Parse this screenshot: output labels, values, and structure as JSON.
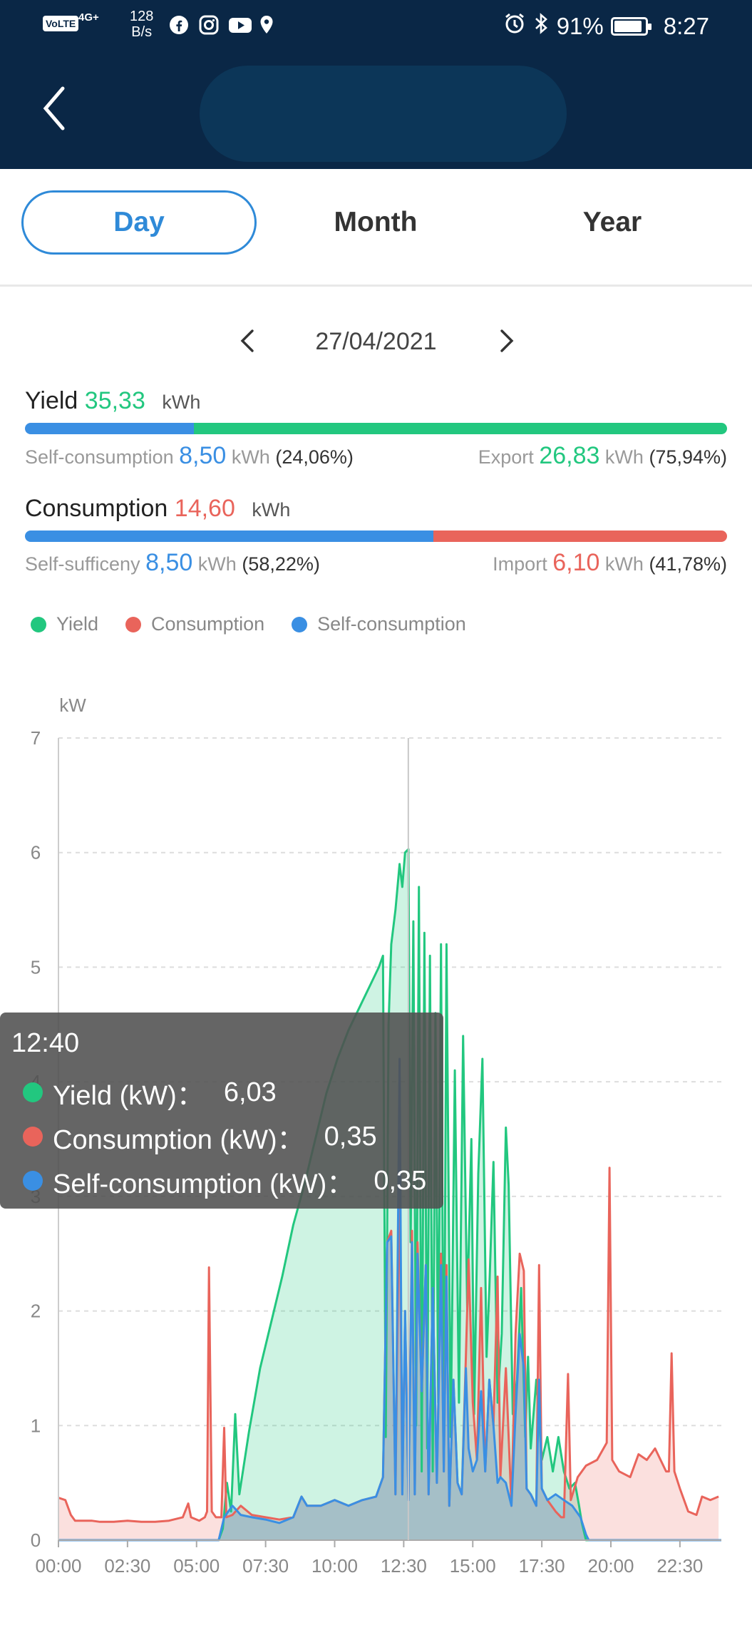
{
  "status_bar": {
    "volte": "VoLTE",
    "network": "4G+",
    "speed_value": "128",
    "speed_unit": "B/s",
    "battery": "91%",
    "time": "8:27"
  },
  "tabs": [
    {
      "label": "Day",
      "active": true
    },
    {
      "label": "Month",
      "active": false
    },
    {
      "label": "Year",
      "active": false
    }
  ],
  "date": "27/04/2021",
  "yield_summary": {
    "label": "Yield",
    "value": "35,33",
    "unit": "kWh",
    "self_consumption_label": "Self-consumption",
    "self_consumption_value": "8,50",
    "self_consumption_unit": "kWh",
    "self_consumption_pct": "(24,06%)",
    "export_label": "Export",
    "export_value": "26,83",
    "export_unit": "kWh",
    "export_pct": "(75,94%)",
    "self_fraction": 0.2406
  },
  "consumption_summary": {
    "label": "Consumption",
    "value": "14,60",
    "unit": "kWh",
    "self_sufficiency_label": "Self-sufficeny",
    "self_sufficiency_value": "8,50",
    "self_sufficiency_unit": "kWh",
    "self_sufficiency_pct": "(58,22%)",
    "import_label": "Import",
    "import_value": "6,10",
    "import_unit": "kWh",
    "import_pct": "(41,78%)",
    "self_fraction": 0.5822
  },
  "legend": [
    {
      "label": "Yield",
      "color": "#22c77f"
    },
    {
      "label": "Consumption",
      "color": "#e9645b"
    },
    {
      "label": "Self-consumption",
      "color": "#3a8fe3"
    }
  ],
  "tooltip": {
    "time": "12:40",
    "rows": [
      {
        "label": "Yield (kW)：",
        "value": "6,03",
        "color": "#22c77f"
      },
      {
        "label": "Consumption (kW)：",
        "value": "0,35",
        "color": "#e9645b"
      },
      {
        "label": "Self-consumption (kW)：",
        "value": "0,35",
        "color": "#3a8fe3"
      }
    ]
  },
  "chart_data": {
    "type": "area",
    "ylabel": "kW",
    "ylim": [
      0,
      7
    ],
    "yticks": [
      "0",
      "1",
      "2",
      "3",
      "4",
      "5",
      "6",
      "7"
    ],
    "xlim_hours": [
      0,
      24
    ],
    "xticks": [
      "00:00",
      "02:30",
      "05:00",
      "07:30",
      "10:00",
      "12:30",
      "15:00",
      "17:30",
      "20:00",
      "22:30"
    ],
    "grid": true,
    "cursor_time": "12:40",
    "series": [
      {
        "name": "Yield",
        "color": "#22c77f",
        "points": [
          [
            0.0,
            0.0
          ],
          [
            5.8,
            0.0
          ],
          [
            5.95,
            0.1
          ],
          [
            6.1,
            0.5
          ],
          [
            6.25,
            0.25
          ],
          [
            6.4,
            1.1
          ],
          [
            6.55,
            0.4
          ],
          [
            6.9,
            0.95
          ],
          [
            7.3,
            1.5
          ],
          [
            7.7,
            1.9
          ],
          [
            8.1,
            2.3
          ],
          [
            8.5,
            2.75
          ],
          [
            8.9,
            3.1
          ],
          [
            9.3,
            3.5
          ],
          [
            9.7,
            3.9
          ],
          [
            10.1,
            4.2
          ],
          [
            10.5,
            4.45
          ],
          [
            10.9,
            4.65
          ],
          [
            11.3,
            4.85
          ],
          [
            11.6,
            5.0
          ],
          [
            11.75,
            5.1
          ],
          [
            11.85,
            0.9
          ],
          [
            11.95,
            4.5
          ],
          [
            12.05,
            5.2
          ],
          [
            12.2,
            5.5
          ],
          [
            12.35,
            5.9
          ],
          [
            12.45,
            5.7
          ],
          [
            12.55,
            6.0
          ],
          [
            12.67,
            6.03
          ],
          [
            12.75,
            2.6
          ],
          [
            12.85,
            5.4
          ],
          [
            12.95,
            1.0
          ],
          [
            13.05,
            5.7
          ],
          [
            13.15,
            0.6
          ],
          [
            13.25,
            5.3
          ],
          [
            13.35,
            0.8
          ],
          [
            13.45,
            5.1
          ],
          [
            13.55,
            0.6
          ],
          [
            13.65,
            4.6
          ],
          [
            13.75,
            1.2
          ],
          [
            13.85,
            5.2
          ],
          [
            13.95,
            0.7
          ],
          [
            14.05,
            5.2
          ],
          [
            14.2,
            0.9
          ],
          [
            14.35,
            4.1
          ],
          [
            14.5,
            1.2
          ],
          [
            14.65,
            4.4
          ],
          [
            14.8,
            2.0
          ],
          [
            14.95,
            3.5
          ],
          [
            15.05,
            1.1
          ],
          [
            15.2,
            3.2
          ],
          [
            15.35,
            4.2
          ],
          [
            15.5,
            1.6
          ],
          [
            15.6,
            2.2
          ],
          [
            15.75,
            3.3
          ],
          [
            15.9,
            1.2
          ],
          [
            16.05,
            1.8
          ],
          [
            16.2,
            3.6
          ],
          [
            16.3,
            3.1
          ],
          [
            16.45,
            1.1
          ],
          [
            16.6,
            1.4
          ],
          [
            16.75,
            2.2
          ],
          [
            16.9,
            0.9
          ],
          [
            17.0,
            1.6
          ],
          [
            17.1,
            0.8
          ],
          [
            17.3,
            1.4
          ],
          [
            17.5,
            0.7
          ],
          [
            17.7,
            0.9
          ],
          [
            17.9,
            0.6
          ],
          [
            18.1,
            0.9
          ],
          [
            18.3,
            0.6
          ],
          [
            18.5,
            0.45
          ],
          [
            18.7,
            0.5
          ],
          [
            18.85,
            0.3
          ],
          [
            18.95,
            0.15
          ],
          [
            19.1,
            0.0
          ],
          [
            24.0,
            0.0
          ]
        ]
      },
      {
        "name": "Consumption",
        "color": "#e9645b",
        "points": [
          [
            0.0,
            0.37
          ],
          [
            0.25,
            0.35
          ],
          [
            0.45,
            0.22
          ],
          [
            0.6,
            0.17
          ],
          [
            1.2,
            0.17
          ],
          [
            1.5,
            0.16
          ],
          [
            2.0,
            0.16
          ],
          [
            2.5,
            0.17
          ],
          [
            3.0,
            0.16
          ],
          [
            3.5,
            0.16
          ],
          [
            4.0,
            0.17
          ],
          [
            4.5,
            0.2
          ],
          [
            4.7,
            0.32
          ],
          [
            4.8,
            0.2
          ],
          [
            5.1,
            0.17
          ],
          [
            5.3,
            0.2
          ],
          [
            5.38,
            0.25
          ],
          [
            5.45,
            2.38
          ],
          [
            5.55,
            0.25
          ],
          [
            5.7,
            0.2
          ],
          [
            5.9,
            0.2
          ],
          [
            6.0,
            0.98
          ],
          [
            6.08,
            0.2
          ],
          [
            6.3,
            0.22
          ],
          [
            6.6,
            0.3
          ],
          [
            7.0,
            0.22
          ],
          [
            7.5,
            0.2
          ],
          [
            8.0,
            0.18
          ],
          [
            8.5,
            0.2
          ],
          [
            8.8,
            0.38
          ],
          [
            9.0,
            0.3
          ],
          [
            9.5,
            0.3
          ],
          [
            10.0,
            0.35
          ],
          [
            10.5,
            0.3
          ],
          [
            11.0,
            0.35
          ],
          [
            11.5,
            0.38
          ],
          [
            11.75,
            0.55
          ],
          [
            11.9,
            2.6
          ],
          [
            12.05,
            2.7
          ],
          [
            12.2,
            0.4
          ],
          [
            12.35,
            3.3
          ],
          [
            12.45,
            0.4
          ],
          [
            12.55,
            2.0
          ],
          [
            12.67,
            0.35
          ],
          [
            12.8,
            2.7
          ],
          [
            12.9,
            0.4
          ],
          [
            13.0,
            2.6
          ],
          [
            13.15,
            1.3
          ],
          [
            13.3,
            2.4
          ],
          [
            13.4,
            0.4
          ],
          [
            13.55,
            2.2
          ],
          [
            13.7,
            0.5
          ],
          [
            13.85,
            2.5
          ],
          [
            13.95,
            0.6
          ],
          [
            14.05,
            2.4
          ],
          [
            14.15,
            0.3
          ],
          [
            14.3,
            1.4
          ],
          [
            14.45,
            0.5
          ],
          [
            14.6,
            0.4
          ],
          [
            14.75,
            1.6
          ],
          [
            14.85,
            2.45
          ],
          [
            15.0,
            1.2
          ],
          [
            15.15,
            0.7
          ],
          [
            15.3,
            2.2
          ],
          [
            15.45,
            0.6
          ],
          [
            15.6,
            1.4
          ],
          [
            15.75,
            1.0
          ],
          [
            15.9,
            2.3
          ],
          [
            16.0,
            0.55
          ],
          [
            16.2,
            1.5
          ],
          [
            16.4,
            0.3
          ],
          [
            16.55,
            1.8
          ],
          [
            16.7,
            2.5
          ],
          [
            16.85,
            2.35
          ],
          [
            16.95,
            0.45
          ],
          [
            17.1,
            0.4
          ],
          [
            17.3,
            0.3
          ],
          [
            17.4,
            2.4
          ],
          [
            17.5,
            0.45
          ],
          [
            17.7,
            0.35
          ],
          [
            18.0,
            0.25
          ],
          [
            18.2,
            0.2
          ],
          [
            18.3,
            0.2
          ],
          [
            18.45,
            1.45
          ],
          [
            18.55,
            0.35
          ],
          [
            18.8,
            0.55
          ],
          [
            19.1,
            0.65
          ],
          [
            19.5,
            0.7
          ],
          [
            19.85,
            0.85
          ],
          [
            19.95,
            3.25
          ],
          [
            20.05,
            0.7
          ],
          [
            20.3,
            0.6
          ],
          [
            20.7,
            0.55
          ],
          [
            21.0,
            0.75
          ],
          [
            21.3,
            0.7
          ],
          [
            21.6,
            0.8
          ],
          [
            21.9,
            0.65
          ],
          [
            22.0,
            0.6
          ],
          [
            22.1,
            0.6
          ],
          [
            22.2,
            1.63
          ],
          [
            22.3,
            0.6
          ],
          [
            22.5,
            0.45
          ],
          [
            22.8,
            0.25
          ],
          [
            23.1,
            0.22
          ],
          [
            23.3,
            0.38
          ],
          [
            23.6,
            0.35
          ],
          [
            23.9,
            0.38
          ]
        ]
      },
      {
        "name": "Self-consumption",
        "color": "#3a8fe3",
        "points": [
          [
            0.0,
            0.0
          ],
          [
            5.8,
            0.0
          ],
          [
            6.0,
            0.2
          ],
          [
            6.3,
            0.3
          ],
          [
            6.6,
            0.22
          ],
          [
            7.0,
            0.2
          ],
          [
            7.5,
            0.18
          ],
          [
            8.0,
            0.15
          ],
          [
            8.5,
            0.2
          ],
          [
            8.8,
            0.38
          ],
          [
            9.0,
            0.3
          ],
          [
            9.5,
            0.3
          ],
          [
            10.0,
            0.35
          ],
          [
            10.5,
            0.3
          ],
          [
            11.0,
            0.35
          ],
          [
            11.5,
            0.38
          ],
          [
            11.75,
            0.55
          ],
          [
            11.9,
            2.6
          ],
          [
            12.05,
            2.65
          ],
          [
            12.2,
            0.4
          ],
          [
            12.35,
            4.2
          ],
          [
            12.45,
            0.4
          ],
          [
            12.55,
            2.0
          ],
          [
            12.67,
            0.35
          ],
          [
            12.8,
            2.6
          ],
          [
            12.9,
            0.4
          ],
          [
            13.0,
            2.5
          ],
          [
            13.15,
            1.3
          ],
          [
            13.3,
            2.4
          ],
          [
            13.4,
            0.4
          ],
          [
            13.55,
            2.2
          ],
          [
            13.7,
            0.5
          ],
          [
            13.85,
            2.4
          ],
          [
            13.95,
            0.6
          ],
          [
            14.05,
            2.3
          ],
          [
            14.15,
            0.3
          ],
          [
            14.3,
            1.4
          ],
          [
            14.45,
            0.5
          ],
          [
            14.6,
            0.4
          ],
          [
            14.75,
            1.5
          ],
          [
            14.85,
            0.8
          ],
          [
            15.0,
            0.6
          ],
          [
            15.15,
            0.7
          ],
          [
            15.3,
            1.3
          ],
          [
            15.45,
            0.6
          ],
          [
            15.6,
            1.4
          ],
          [
            15.75,
            1.0
          ],
          [
            15.9,
            0.5
          ],
          [
            16.0,
            0.55
          ],
          [
            16.2,
            0.5
          ],
          [
            16.4,
            0.3
          ],
          [
            16.55,
            1.1
          ],
          [
            16.7,
            1.8
          ],
          [
            16.85,
            1.5
          ],
          [
            16.95,
            0.45
          ],
          [
            17.1,
            0.4
          ],
          [
            17.3,
            0.3
          ],
          [
            17.4,
            1.4
          ],
          [
            17.5,
            0.45
          ],
          [
            17.7,
            0.35
          ],
          [
            18.0,
            0.4
          ],
          [
            18.3,
            0.35
          ],
          [
            18.6,
            0.3
          ],
          [
            18.9,
            0.2
          ],
          [
            19.1,
            0.05
          ],
          [
            19.2,
            0.0
          ],
          [
            24.0,
            0.0
          ]
        ]
      }
    ]
  }
}
